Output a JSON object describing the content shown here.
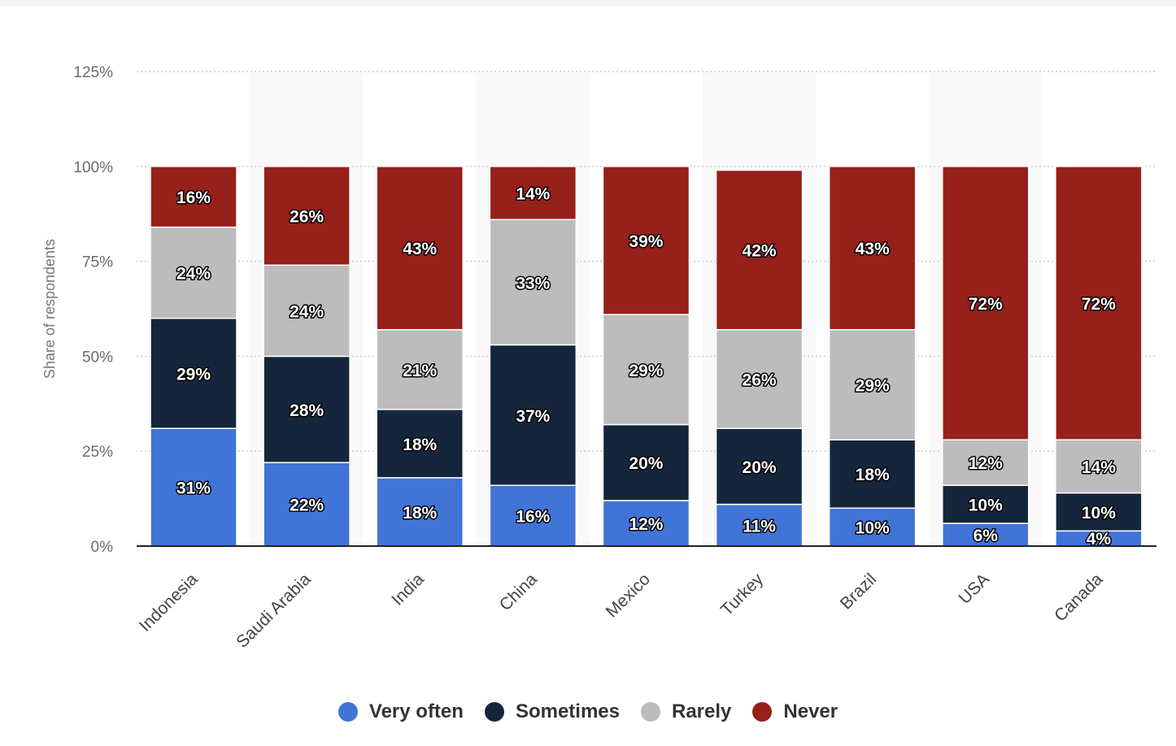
{
  "chart_data": {
    "type": "bar",
    "stacked": true,
    "categories": [
      "Indonesia",
      "Saudi Arabia",
      "India",
      "China",
      "Mexico",
      "Turkey",
      "Brazil",
      "USA",
      "Canada"
    ],
    "series": [
      {
        "name": "Very often",
        "color": "#4174d7",
        "values": [
          31,
          22,
          18,
          16,
          12,
          11,
          10,
          6,
          4
        ]
      },
      {
        "name": "Sometimes",
        "color": "#15263c",
        "values": [
          29,
          28,
          18,
          37,
          20,
          20,
          18,
          10,
          10
        ]
      },
      {
        "name": "Rarely",
        "color": "#bcbcbc",
        "values": [
          24,
          24,
          21,
          33,
          29,
          26,
          29,
          12,
          14
        ]
      },
      {
        "name": "Never",
        "color": "#96201a",
        "values": [
          16,
          26,
          43,
          14,
          39,
          42,
          43,
          72,
          72
        ]
      }
    ],
    "ylabel": "Share of respondents",
    "yticks": [
      "0%",
      "25%",
      "50%",
      "75%",
      "100%",
      "125%"
    ],
    "ylim": [
      0,
      125
    ],
    "grid": true,
    "legend_position": "bottom"
  }
}
